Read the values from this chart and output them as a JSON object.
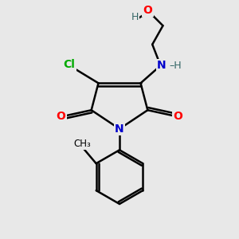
{
  "bg_color": "#e8e8e8",
  "atom_colors": {
    "C": "#000000",
    "N": "#0000cc",
    "O": "#ff0000",
    "Cl": "#00aa00",
    "H": "#336666"
  },
  "bond_color": "#000000",
  "bond_width": 1.8
}
